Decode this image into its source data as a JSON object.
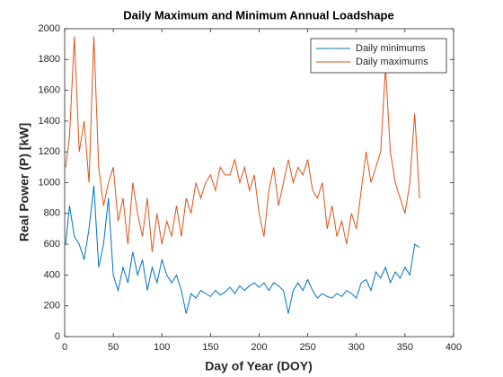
{
  "chart_data": {
    "type": "line",
    "title": "Daily Maximum and Minimum Annual Loadshape",
    "x_label": "Day of Year (DOY)",
    "y_label": "Real Power (P) [kW]",
    "x": [
      1,
      5,
      10,
      15,
      20,
      25,
      30,
      35,
      40,
      45,
      50,
      55,
      60,
      65,
      70,
      75,
      80,
      85,
      90,
      95,
      100,
      105,
      110,
      115,
      120,
      125,
      130,
      135,
      140,
      145,
      150,
      155,
      160,
      165,
      170,
      175,
      180,
      185,
      190,
      195,
      200,
      205,
      210,
      215,
      220,
      225,
      230,
      235,
      240,
      245,
      250,
      255,
      260,
      265,
      270,
      275,
      280,
      285,
      290,
      295,
      300,
      305,
      310,
      315,
      320,
      325,
      330,
      335,
      340,
      345,
      350,
      355,
      360,
      365
    ],
    "series": [
      {
        "name": "Daily minimums",
        "color": "#0072bd",
        "values": [
          600,
          850,
          650,
          600,
          500,
          700,
          980,
          450,
          600,
          900,
          400,
          300,
          450,
          350,
          550,
          400,
          500,
          300,
          450,
          350,
          500,
          400,
          350,
          400,
          300,
          150,
          280,
          250,
          300,
          280,
          260,
          300,
          270,
          290,
          320,
          280,
          330,
          300,
          330,
          350,
          320,
          350,
          300,
          350,
          330,
          300,
          150,
          300,
          350,
          300,
          370,
          300,
          250,
          280,
          260,
          250,
          280,
          260,
          300,
          280,
          250,
          350,
          370,
          300,
          420,
          380,
          450,
          350,
          420,
          380,
          450,
          400,
          600,
          580
        ]
      },
      {
        "name": "Daily maximums",
        "color": "#d95319",
        "values": [
          1100,
          1300,
          1950,
          1200,
          1400,
          1000,
          1950,
          1100,
          850,
          1000,
          1100,
          750,
          900,
          600,
          1000,
          800,
          650,
          900,
          550,
          800,
          600,
          750,
          650,
          850,
          650,
          900,
          800,
          1000,
          900,
          1000,
          1050,
          950,
          1100,
          1050,
          1050,
          1150,
          1000,
          1100,
          950,
          1050,
          800,
          650,
          950,
          1100,
          850,
          1000,
          1150,
          1000,
          1100,
          1050,
          1150,
          950,
          900,
          1000,
          700,
          850,
          650,
          750,
          600,
          800,
          700,
          950,
          1200,
          1000,
          1100,
          1200,
          1750,
          1200,
          1000,
          900,
          800,
          1000,
          1450,
          900
        ]
      }
    ],
    "xlim": [
      0,
      400
    ],
    "xticks": [
      0,
      50,
      100,
      150,
      200,
      250,
      300,
      350,
      400
    ],
    "ylim": [
      0,
      2000
    ],
    "yticks": [
      0,
      200,
      400,
      600,
      800,
      1000,
      1200,
      1400,
      1600,
      1800,
      2000
    ],
    "grid": false,
    "legend": "upper-right"
  }
}
